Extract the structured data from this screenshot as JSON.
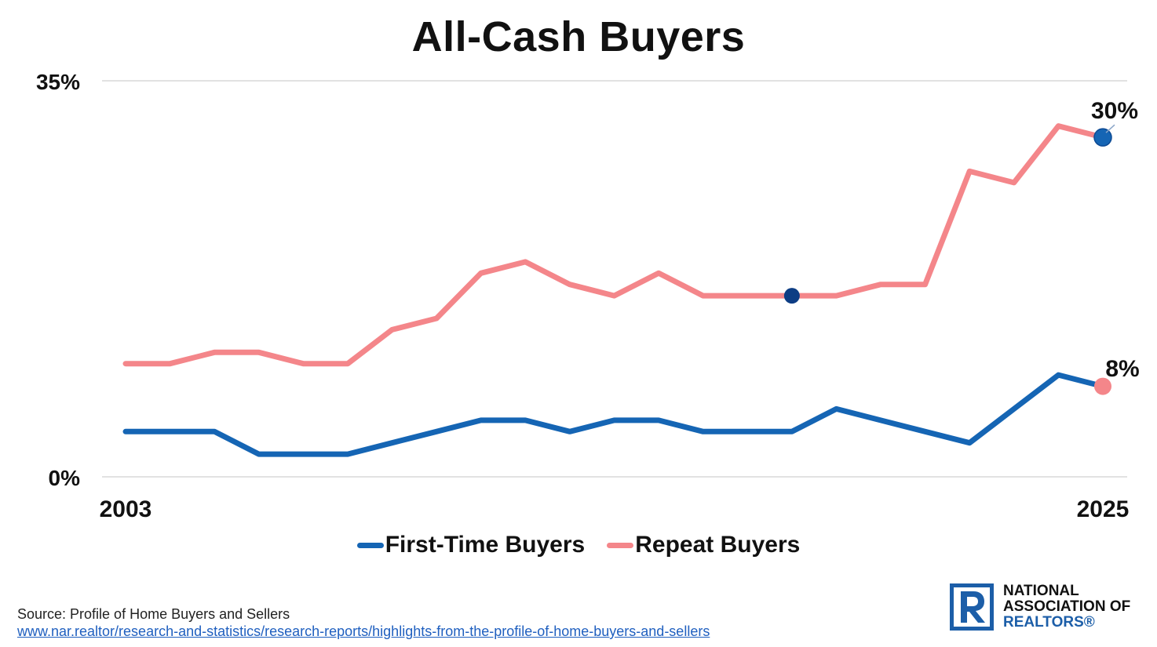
{
  "title": "All-Cash Buyers",
  "legend": {
    "first_time": "First-Time Buyers",
    "repeat": "Repeat Buyers"
  },
  "source": {
    "label": "Source: Profile of Home Buyers and Sellers",
    "url": "www.nar.realtor/research-and-statistics/research-reports/highlights-from-the-profile-of-home-buyers-and-sellers"
  },
  "logo": {
    "line1": "NATIONAL",
    "line2": "ASSOCIATION OF",
    "line3": "REALTORS®",
    "icon": "realtor-r-logo-icon"
  },
  "colors": {
    "first_time": "#1565b4",
    "repeat": "#f4868a",
    "marker_dark": "#0d3d84",
    "grid": "#d9d9d9"
  },
  "chart_data": {
    "type": "line",
    "title": "All-Cash Buyers",
    "x": [
      2003,
      2004,
      2005,
      2006,
      2007,
      2008,
      2009,
      2010,
      2011,
      2012,
      2013,
      2014,
      2015,
      2016,
      2017,
      2018,
      2019,
      2020,
      2021,
      2022,
      2023,
      2024,
      2025
    ],
    "x_tick_labels": [
      "2003",
      "2025"
    ],
    "ylim": [
      0,
      35
    ],
    "y_tick_labels": [
      "0%",
      "35%"
    ],
    "grid": true,
    "legend_position": "bottom",
    "series": [
      {
        "name": "First-Time Buyers",
        "values": [
          4,
          4,
          4,
          2,
          2,
          2,
          3,
          4,
          5,
          5,
          4,
          5,
          5,
          4,
          4,
          4,
          6,
          5,
          4,
          3,
          6,
          9,
          8
        ],
        "end_label": "8%"
      },
      {
        "name": "Repeat Buyers",
        "values": [
          10,
          10,
          11,
          11,
          10,
          10,
          13,
          14,
          18,
          19,
          17,
          16,
          18,
          16,
          16,
          16,
          16,
          17,
          17,
          27,
          26,
          31,
          30
        ],
        "end_label": "30%"
      }
    ]
  }
}
